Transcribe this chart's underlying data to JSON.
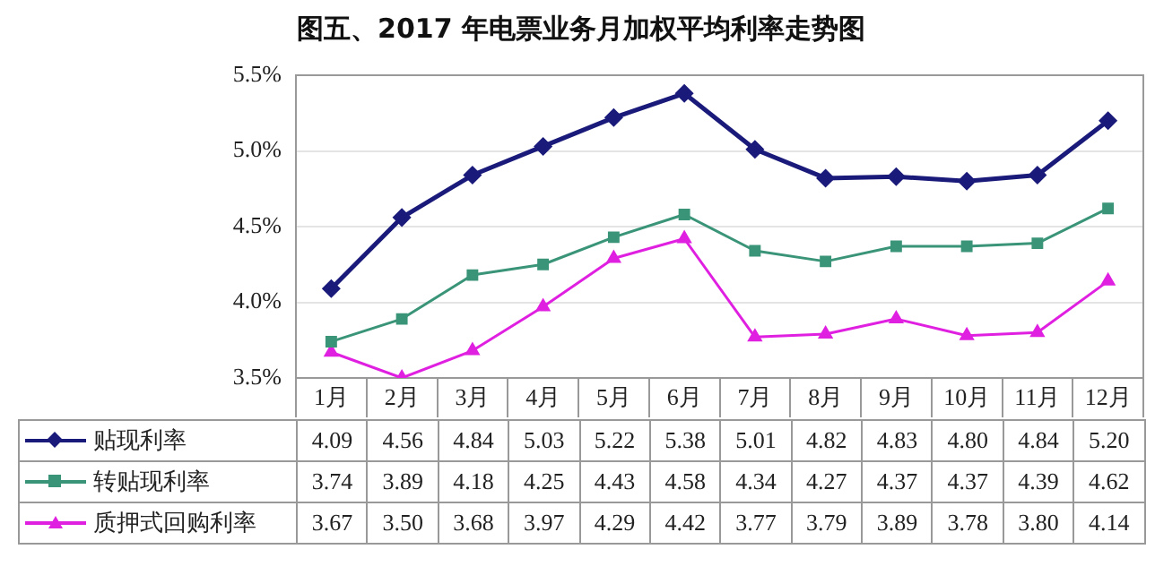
{
  "chart_data": {
    "type": "line",
    "title": "图五、2017 年电票业务月加权平均利率走势图",
    "categories": [
      "1月",
      "2月",
      "3月",
      "4月",
      "5月",
      "6月",
      "7月",
      "8月",
      "9月",
      "10月",
      "11月",
      "12月"
    ],
    "series": [
      {
        "name": "贴现利率",
        "color": "#1a1a7a",
        "marker": "diamond",
        "values": [
          4.09,
          4.56,
          4.84,
          5.03,
          5.22,
          5.38,
          5.01,
          4.82,
          4.83,
          4.8,
          4.84,
          5.2
        ],
        "value_labels": [
          "4.09",
          "4.56",
          "4.84",
          "5.03",
          "5.22",
          "5.38",
          "5.01",
          "4.82",
          "4.83",
          "4.80",
          "4.84",
          "5.20"
        ]
      },
      {
        "name": "转贴现利率",
        "color": "#3a9478",
        "marker": "square",
        "values": [
          3.74,
          3.89,
          4.18,
          4.25,
          4.43,
          4.58,
          4.34,
          4.27,
          4.37,
          4.37,
          4.39,
          4.62
        ],
        "value_labels": [
          "3.74",
          "3.89",
          "4.18",
          "4.25",
          "4.43",
          "4.58",
          "4.34",
          "4.27",
          "4.37",
          "4.37",
          "4.39",
          "4.62"
        ]
      },
      {
        "name": "质押式回购利率",
        "color": "#e020e0",
        "marker": "triangle",
        "values": [
          3.67,
          3.5,
          3.68,
          3.97,
          4.29,
          4.42,
          3.77,
          3.79,
          3.89,
          3.78,
          3.8,
          4.14
        ],
        "value_labels": [
          "3.67",
          "3.50",
          "3.68",
          "3.97",
          "4.29",
          "4.42",
          "3.77",
          "3.79",
          "3.89",
          "3.78",
          "3.80",
          "4.14"
        ]
      }
    ],
    "ylim": [
      3.5,
      5.5
    ],
    "yticks": [
      {
        "value": 3.5,
        "label": "3.5%"
      },
      {
        "value": 4.0,
        "label": "4.0%"
      },
      {
        "value": 4.5,
        "label": "4.5%"
      },
      {
        "value": 5.0,
        "label": "5.0%"
      },
      {
        "value": 5.5,
        "label": "5.5%"
      }
    ],
    "grid": "y",
    "legend": "bottom"
  }
}
